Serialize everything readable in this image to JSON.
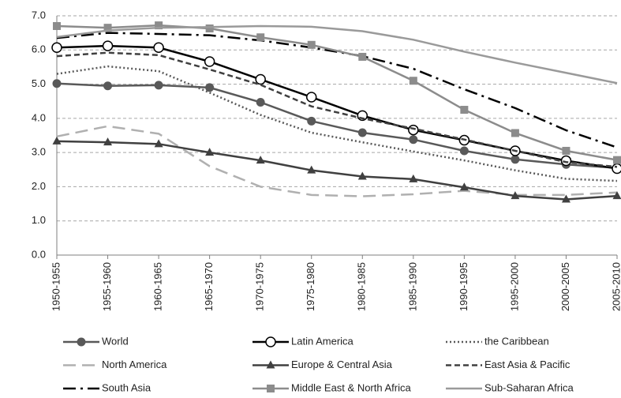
{
  "chart_data": {
    "type": "line",
    "categories": [
      "1950-1955",
      "1955-1960",
      "1960-1965",
      "1965-1970",
      "1970-1975",
      "1975-1980",
      "1980-1985",
      "1985-1990",
      "1990-1995",
      "1995-2000",
      "2000-2005",
      "2005-2010"
    ],
    "ylim": [
      0,
      7
    ],
    "yticks": [
      {
        "value": 0,
        "label": "0.0"
      },
      {
        "value": 1,
        "label": "1.0"
      },
      {
        "value": 2,
        "label": "2.0"
      },
      {
        "value": 3,
        "label": "3.0"
      },
      {
        "value": 4,
        "label": "4.0"
      },
      {
        "value": 5,
        "label": "5.0"
      },
      {
        "value": 6,
        "label": "6.0"
      },
      {
        "value": 7,
        "label": "7.0"
      }
    ],
    "grid": true,
    "legend": "bottom",
    "series": [
      {
        "name": "World",
        "color": "#595959",
        "dash": "solid",
        "marker": "circle",
        "values": [
          5.02,
          4.95,
          4.97,
          4.9,
          4.47,
          3.92,
          3.58,
          3.38,
          3.05,
          2.8,
          2.65,
          2.55
        ]
      },
      {
        "name": "Latin America",
        "color": "#000000",
        "dash": "solid",
        "marker": "open-circle",
        "values": [
          6.07,
          6.12,
          6.07,
          5.66,
          5.14,
          4.62,
          4.08,
          3.66,
          3.36,
          3.05,
          2.76,
          2.53
        ]
      },
      {
        "name": "the Caribbean",
        "color": "#595959",
        "dash": "dot",
        "marker": "none",
        "values": [
          5.3,
          5.52,
          5.38,
          4.75,
          4.1,
          3.58,
          3.3,
          3.03,
          2.77,
          2.48,
          2.23,
          2.17
        ]
      },
      {
        "name": "North America",
        "color": "#b0b0b0",
        "dash": "longdash",
        "marker": "none",
        "values": [
          3.47,
          3.77,
          3.55,
          2.6,
          2.0,
          1.76,
          1.72,
          1.78,
          1.88,
          1.76,
          1.76,
          1.83
        ]
      },
      {
        "name": "Europe & Central Asia",
        "color": "#404040",
        "dash": "solid",
        "marker": "triangle",
        "values": [
          3.33,
          3.3,
          3.25,
          3.0,
          2.77,
          2.48,
          2.3,
          2.22,
          1.98,
          1.73,
          1.63,
          1.73
        ]
      },
      {
        "name": "East Asia & Pacific",
        "color": "#404040",
        "dash": "dash",
        "marker": "none",
        "values": [
          5.82,
          5.92,
          5.85,
          5.43,
          4.98,
          4.35,
          4.0,
          3.7,
          3.38,
          3.05,
          2.72,
          2.58
        ]
      },
      {
        "name": "South Asia",
        "color": "#000000",
        "dash": "dashdot",
        "marker": "none",
        "values": [
          6.35,
          6.5,
          6.47,
          6.43,
          6.28,
          6.07,
          5.82,
          5.45,
          4.85,
          4.3,
          3.65,
          3.15
        ]
      },
      {
        "name": "Middle East & North Africa",
        "color": "#8c8c8c",
        "dash": "solid",
        "marker": "square",
        "values": [
          6.7,
          6.65,
          6.72,
          6.63,
          6.37,
          6.15,
          5.8,
          5.1,
          4.25,
          3.57,
          3.05,
          2.78
        ]
      },
      {
        "name": "Sub-Saharan Africa",
        "color": "#9a9a9a",
        "dash": "solid",
        "marker": "none",
        "values": [
          6.38,
          6.57,
          6.65,
          6.67,
          6.7,
          6.68,
          6.55,
          6.3,
          5.95,
          5.63,
          5.33,
          5.03
        ]
      }
    ]
  }
}
